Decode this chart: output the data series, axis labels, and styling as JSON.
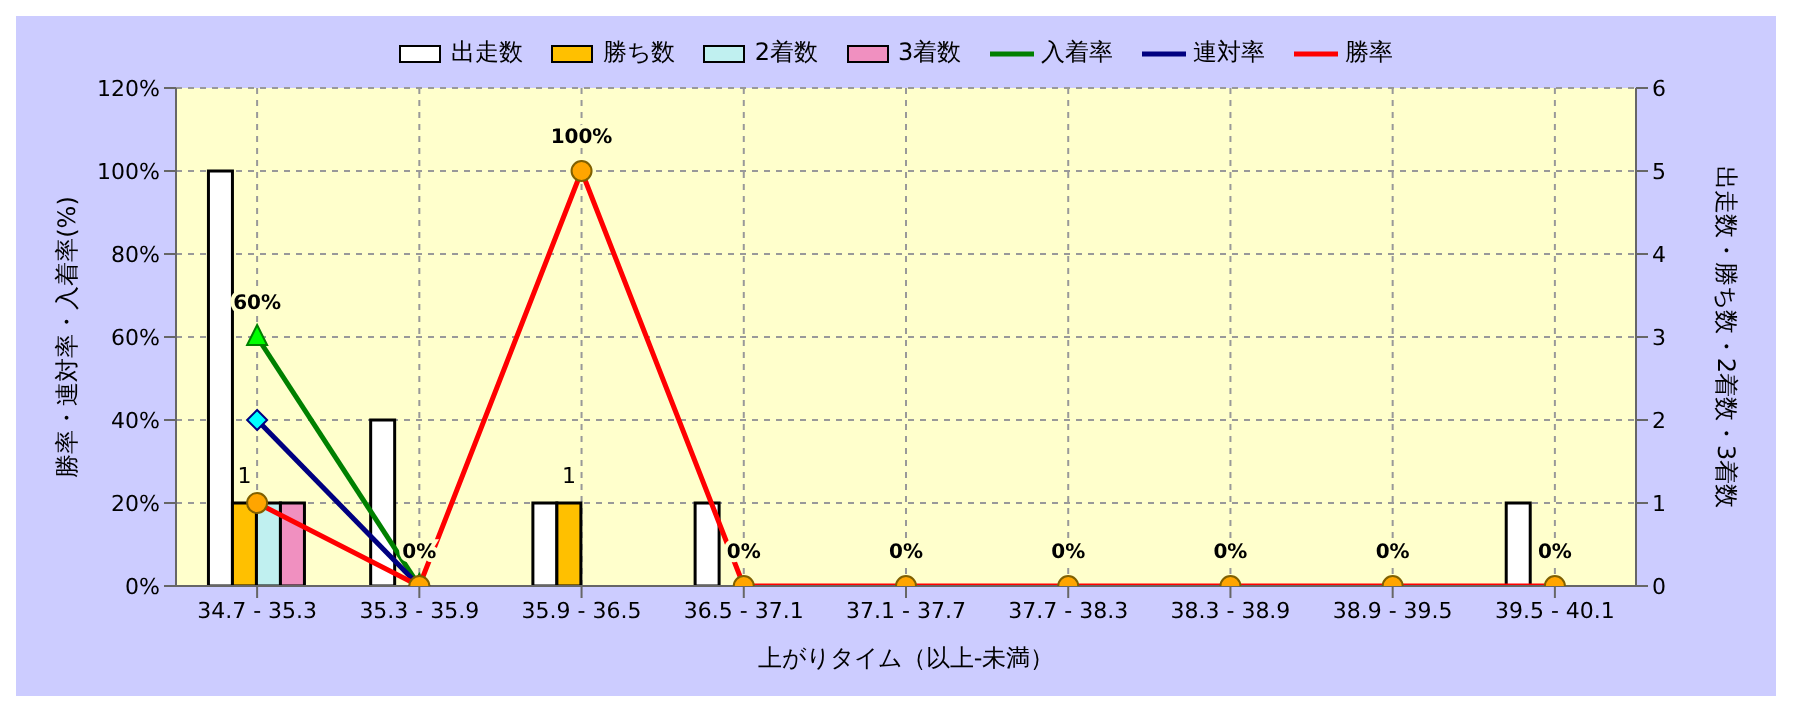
{
  "chart_data": {
    "type": "bar",
    "xlabel": "上がりタイム（以上-未満）",
    "ylabel": "勝率・連対率・入着率(%)",
    "y2label": "出走数・勝ち数・2着数・3着数",
    "categories": [
      "34.7 - 35.3",
      "35.3 - 35.9",
      "35.9 - 36.5",
      "36.5 - 37.1",
      "37.1 - 37.7",
      "37.7 - 38.3",
      "38.3 - 38.9",
      "38.9 - 39.5",
      "39.5 - 40.1"
    ],
    "series": [
      {
        "name": "出走数",
        "axis": "y2",
        "color": "#ffffff",
        "values": [
          5,
          2,
          1,
          1,
          0,
          0,
          0,
          0,
          1
        ]
      },
      {
        "name": "勝ち数",
        "axis": "y2",
        "color": "#ffc000",
        "values": [
          1,
          0,
          1,
          0,
          0,
          0,
          0,
          0,
          0
        ],
        "value_labels": [
          "1",
          null,
          "1",
          null,
          null,
          null,
          null,
          null,
          null
        ]
      },
      {
        "name": "2着数",
        "axis": "y2",
        "color": "#c0f0f0",
        "values": [
          1,
          0,
          0,
          0,
          0,
          0,
          0,
          0,
          0
        ]
      },
      {
        "name": "3着数",
        "axis": "y2",
        "color": "#f090c0",
        "values": [
          1,
          0,
          0,
          0,
          0,
          0,
          0,
          0,
          0
        ]
      },
      {
        "name": "入着率",
        "type": "line",
        "axis": "y",
        "color": "#008000",
        "marker": "triangle",
        "values": [
          60,
          0,
          null,
          null,
          null,
          null,
          null,
          null,
          null
        ],
        "value_labels": [
          "60%",
          null,
          null,
          null,
          null,
          null,
          null,
          null,
          null
        ]
      },
      {
        "name": "連対率",
        "type": "line",
        "axis": "y",
        "color": "#000080",
        "marker": "diamond",
        "values": [
          40,
          0,
          null,
          null,
          null,
          null,
          null,
          null,
          null
        ]
      },
      {
        "name": "勝率",
        "type": "line",
        "axis": "y",
        "color": "#ff0000",
        "marker": "circle",
        "values": [
          20,
          0,
          100,
          0,
          0,
          0,
          0,
          0,
          0
        ],
        "value_labels": [
          null,
          "0%",
          "100%",
          "0%",
          "0%",
          "0%",
          "0%",
          "0%",
          "0%"
        ]
      }
    ],
    "ylim": [
      0,
      120
    ],
    "yticks": [
      {
        "value": 0,
        "label": "0%"
      },
      {
        "value": 20,
        "label": "20%"
      },
      {
        "value": 40,
        "label": "40%"
      },
      {
        "value": 60,
        "label": "60%"
      },
      {
        "value": 80,
        "label": "80%"
      },
      {
        "value": 100,
        "label": "100%"
      },
      {
        "value": 120,
        "label": "120%"
      }
    ],
    "y2lim": [
      0,
      6
    ],
    "y2ticks": [
      0,
      1,
      2,
      3,
      4,
      5,
      6
    ],
    "grid": true,
    "legend": "top"
  }
}
